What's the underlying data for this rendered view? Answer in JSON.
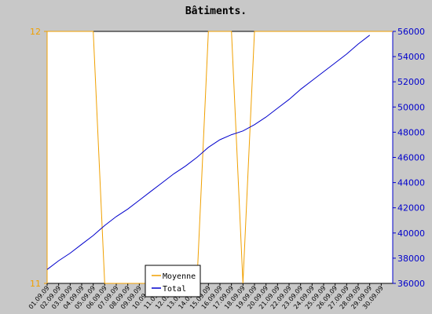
{
  "chart_data": {
    "type": "line",
    "title": "Bâtiments.",
    "x": [
      "01.09.09",
      "02.09.09",
      "03.09.09",
      "04.09.09",
      "05.09.09",
      "06.09.09",
      "07.09.09",
      "08.09.09",
      "09.09.09",
      "10.09.09",
      "11.09.09",
      "12.09.09",
      "13.09.09",
      "14.09.09",
      "15.09.09",
      "16.09.09",
      "17.09.09",
      "18.09.09",
      "19.09.09",
      "20.09.09",
      "21.09.09",
      "22.09.09",
      "23.09.09",
      "24.09.09",
      "25.09.09",
      "26.09.09",
      "27.09.09",
      "28.09.09",
      "29.09.09",
      "30.09.09"
    ],
    "y_left": {
      "min": 11,
      "max": 12,
      "ticks": [
        "11",
        "12"
      ],
      "color": "#f0a000"
    },
    "y_right": {
      "min": 36000,
      "max": 56000,
      "ticks": [
        "36000",
        "38000",
        "40000",
        "42000",
        "44000",
        "46000",
        "48000",
        "50000",
        "52000",
        "54000",
        "56000"
      ],
      "color": "#0000cc"
    },
    "series": [
      {
        "name": "Moyenne",
        "axis": "left",
        "color": "#f0a000",
        "points": [
          [
            0,
            12
          ],
          [
            4,
            12
          ],
          [
            5,
            11
          ],
          [
            13,
            11
          ],
          [
            14,
            12
          ],
          [
            16,
            12
          ],
          [
            17,
            11
          ],
          [
            18,
            12
          ],
          [
            30,
            12
          ]
        ]
      },
      {
        "name": "Total",
        "axis": "right",
        "color": "#0000cc",
        "points": [
          [
            0,
            37100
          ],
          [
            1,
            37800
          ],
          [
            2,
            38400
          ],
          [
            3,
            39100
          ],
          [
            4,
            39800
          ],
          [
            5,
            40600
          ],
          [
            6,
            41300
          ],
          [
            7,
            41900
          ],
          [
            8,
            42600
          ],
          [
            9,
            43300
          ],
          [
            10,
            44000
          ],
          [
            11,
            44700
          ],
          [
            12,
            45300
          ],
          [
            13,
            46000
          ],
          [
            14,
            46800
          ],
          [
            15,
            47400
          ],
          [
            16,
            47800
          ],
          [
            17,
            48100
          ],
          [
            18,
            48600
          ],
          [
            19,
            49200
          ],
          [
            20,
            49900
          ],
          [
            21,
            50600
          ],
          [
            22,
            51400
          ],
          [
            23,
            52100
          ],
          [
            24,
            52800
          ],
          [
            25,
            53500
          ],
          [
            26,
            54200
          ],
          [
            27,
            55000
          ],
          [
            28,
            55700
          ]
        ]
      }
    ],
    "legend": {
      "placement": "bottom-left",
      "entries": [
        "Moyenne",
        "Total"
      ]
    },
    "grid": false
  }
}
